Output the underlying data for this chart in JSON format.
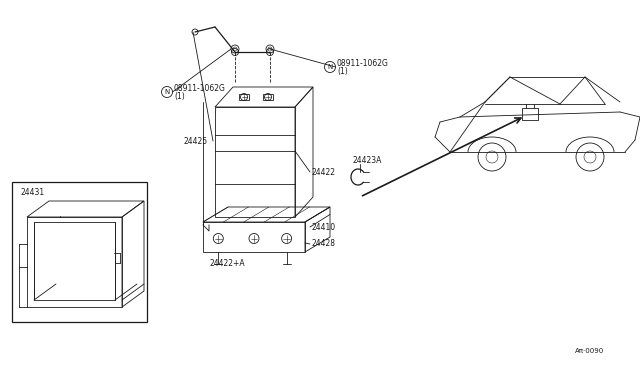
{
  "bg_color": "#ffffff",
  "line_color": "#1a1a1a",
  "fig_width": 6.4,
  "fig_height": 3.72,
  "dpi": 100,
  "parts": {
    "nut_label_left": "N 08911-1062G\n(1)",
    "nut_label_top": "N 08911-1062G\n(1)",
    "p24425": "24425",
    "p24431": "24431",
    "p24422": "24422",
    "p24422a": "24422+A",
    "p24410": "24410",
    "p24428": "24428",
    "p24423a": "24423A"
  },
  "watermark": "Aπ⋅0090"
}
